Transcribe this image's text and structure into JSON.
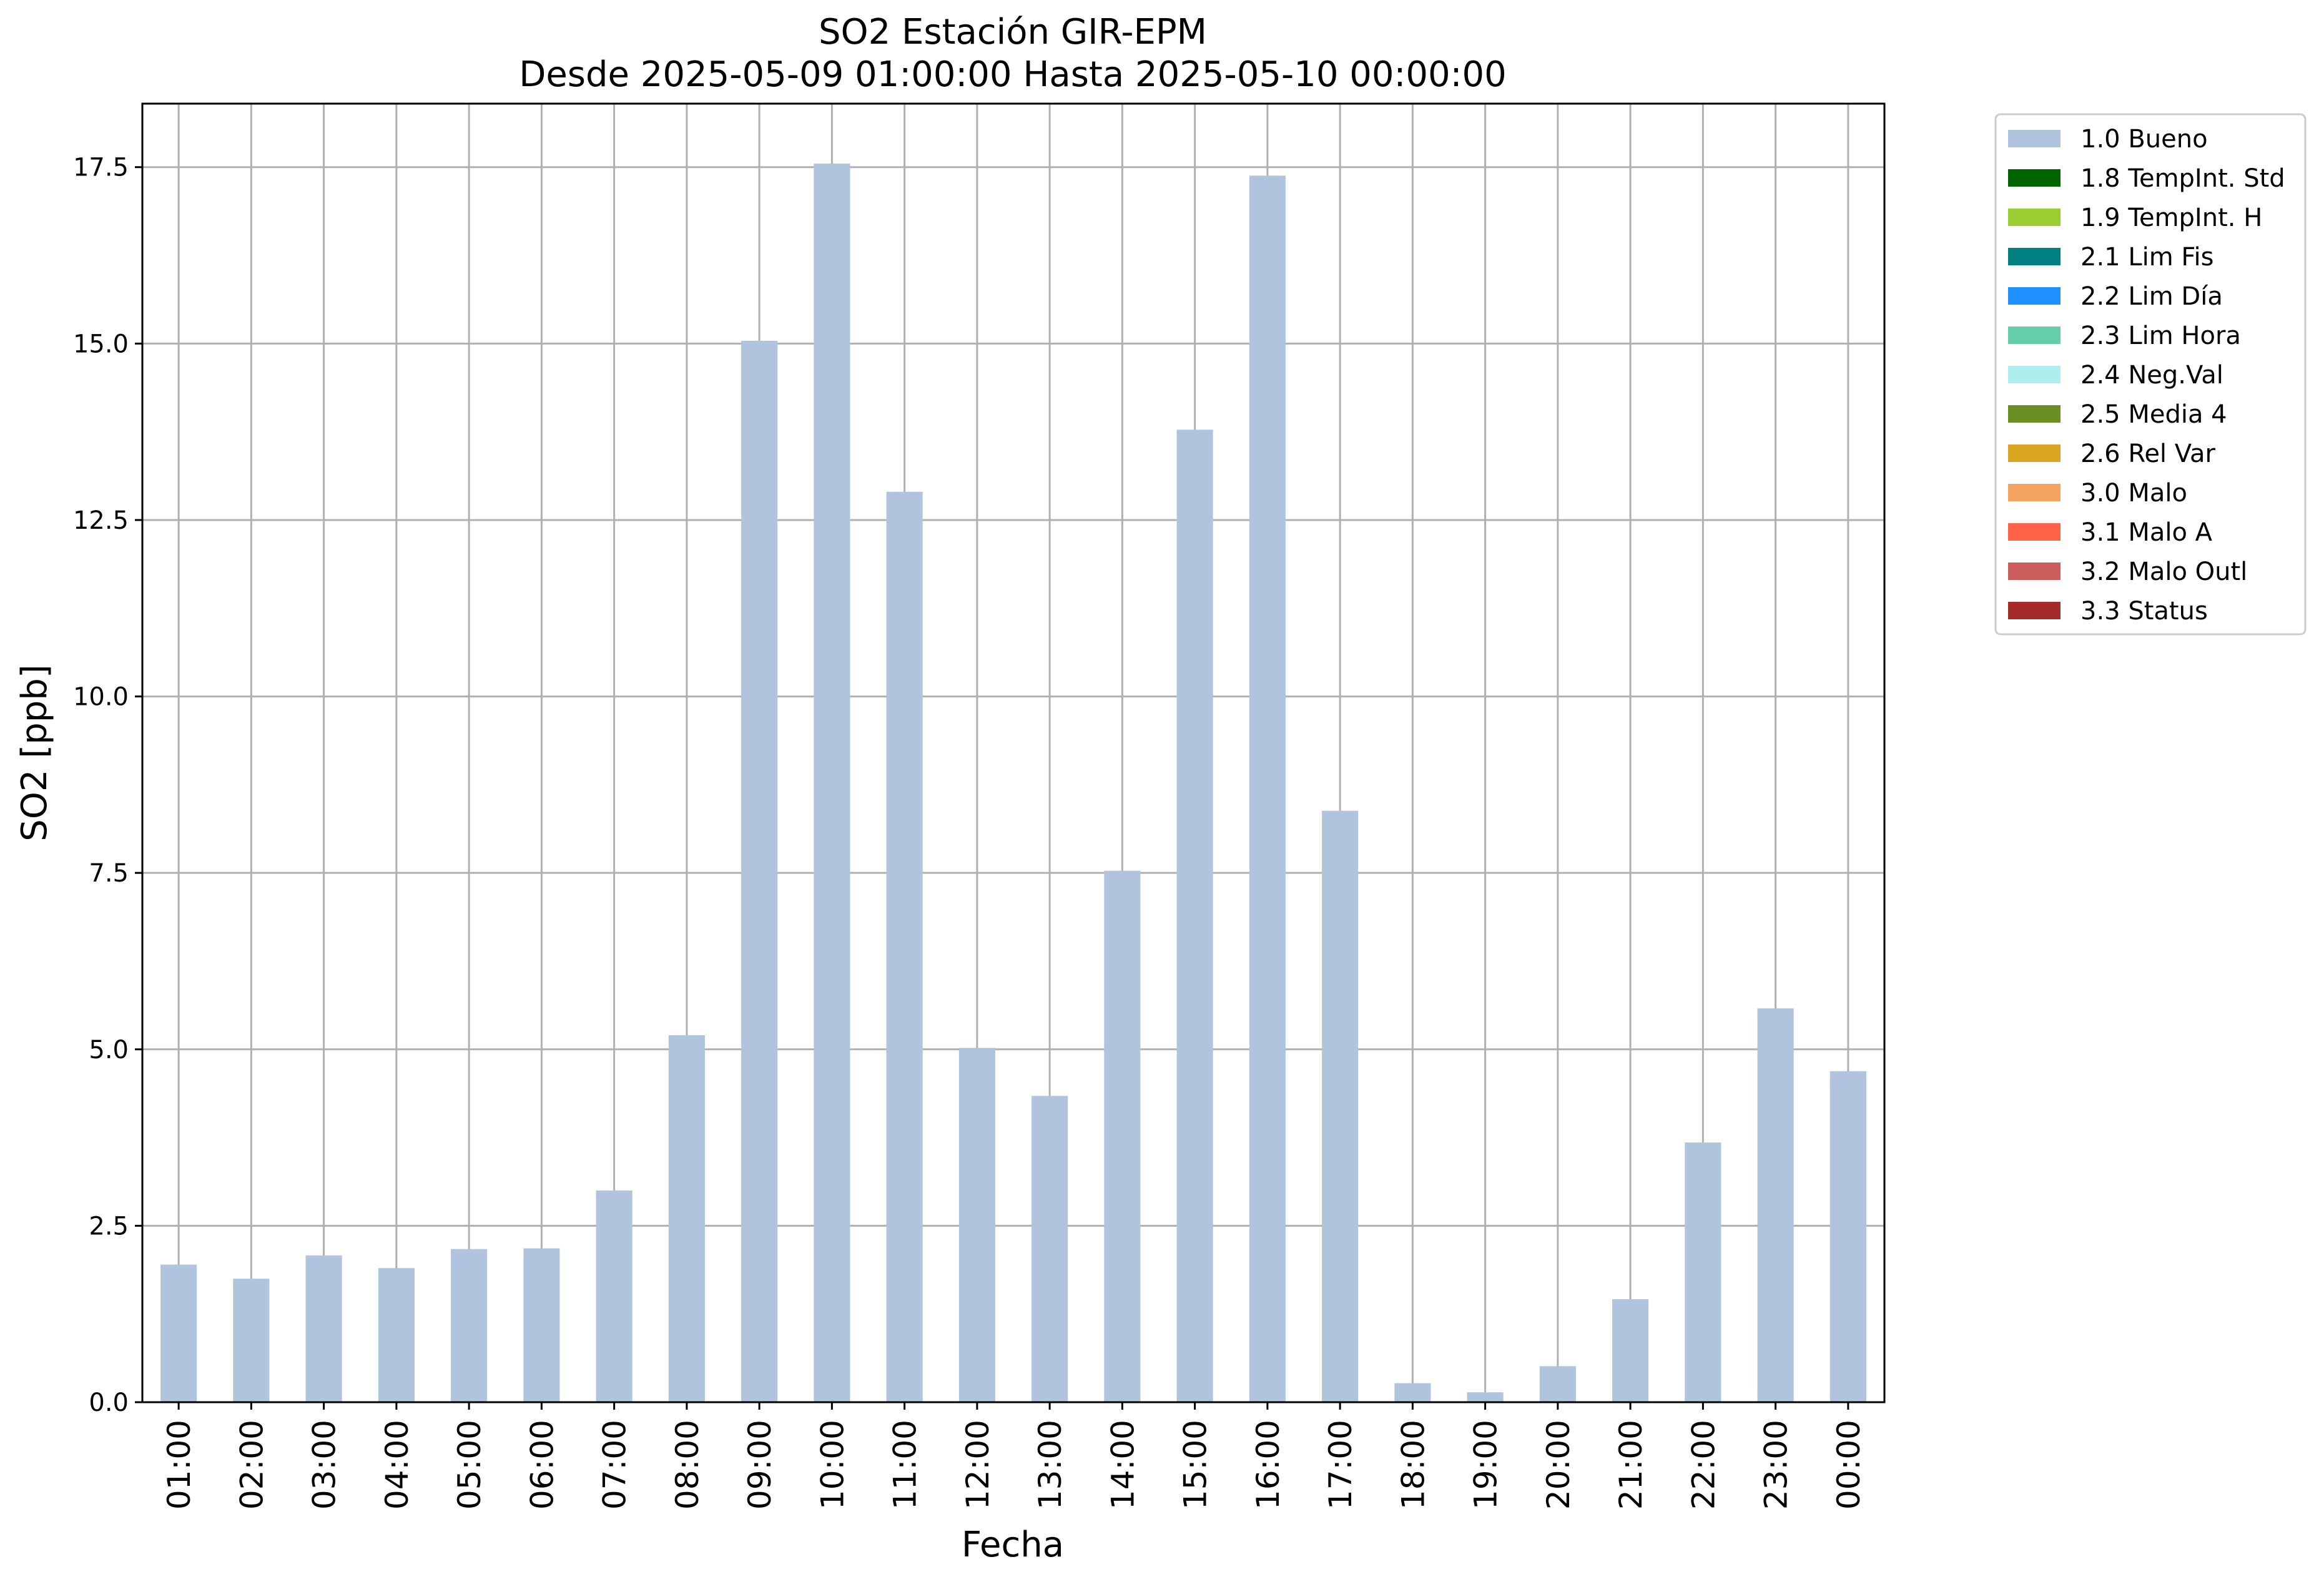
{
  "chart_data": {
    "type": "bar",
    "title": "SO2 Estación GIR-EPM",
    "subtitle": "Desde 2025-05-09 01:00:00 Hasta 2025-05-10 00:00:00",
    "xlabel": "Fecha",
    "ylabel": "SO2 [ppb]",
    "ylim": [
      0,
      18.4
    ],
    "yticks": [
      "0.0",
      "2.5",
      "5.0",
      "7.5",
      "10.0",
      "12.5",
      "15.0",
      "17.5"
    ],
    "grid": true,
    "legend_position": "outside right, top",
    "categories": [
      "01:00",
      "02:00",
      "03:00",
      "04:00",
      "05:00",
      "06:00",
      "07:00",
      "08:00",
      "09:00",
      "10:00",
      "11:00",
      "12:00",
      "13:00",
      "14:00",
      "15:00",
      "16:00",
      "17:00",
      "18:00",
      "19:00",
      "20:00",
      "21:00",
      "22:00",
      "23:00",
      "00:00"
    ],
    "series": [
      {
        "name": "1.0 Bueno",
        "color": "#b0c4de",
        "values": [
          1.95,
          1.75,
          2.08,
          1.9,
          2.17,
          2.18,
          3.0,
          5.2,
          15.04,
          17.55,
          12.9,
          5.02,
          4.34,
          7.53,
          13.78,
          17.38,
          8.38,
          0.27,
          0.14,
          0.51,
          1.46,
          3.68,
          5.58,
          4.69
        ]
      }
    ],
    "legend": [
      {
        "label": "1.0 Bueno",
        "color": "#b0c4de"
      },
      {
        "label": "1.8 TempInt. Std",
        "color": "#006400"
      },
      {
        "label": "1.9 TempInt. H",
        "color": "#9acd32"
      },
      {
        "label": "2.1 Lim Fis",
        "color": "#008080"
      },
      {
        "label": "2.2 Lim Día",
        "color": "#1e90ff"
      },
      {
        "label": "2.3 Lim Hora",
        "color": "#66cdaa"
      },
      {
        "label": "2.4 Neg.Val",
        "color": "#afeeee"
      },
      {
        "label": "2.5 Media 4",
        "color": "#6b8e23"
      },
      {
        "label": "2.6 Rel Var",
        "color": "#daa520"
      },
      {
        "label": "3.0 Malo",
        "color": "#f4a460"
      },
      {
        "label": "3.1 Malo A",
        "color": "#ff6347"
      },
      {
        "label": "3.2 Malo Outl",
        "color": "#cd5c5c"
      },
      {
        "label": "3.3 Status",
        "color": "#a52a2a"
      }
    ]
  }
}
